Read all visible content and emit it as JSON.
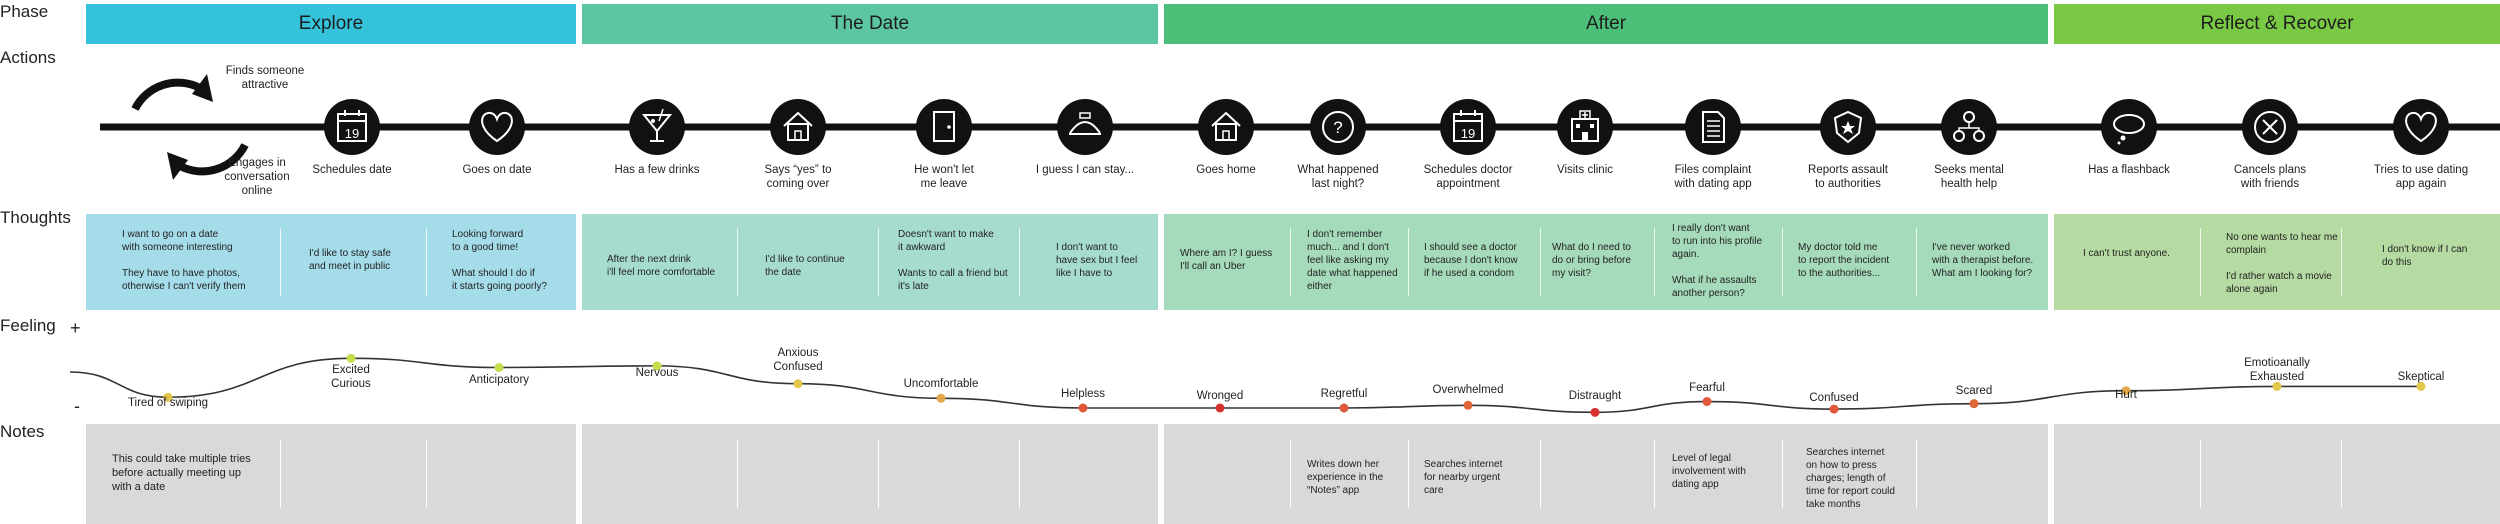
{
  "row_labels": {
    "phase": "Phase",
    "actions": "Actions",
    "thoughts": "Thoughts",
    "feeling": "Feeling",
    "notes": "Notes",
    "plus": "+",
    "minus": "-"
  },
  "phases": [
    {
      "label": "Explore",
      "color": "#35c3dc"
    },
    {
      "label": "The Date",
      "color": "#5cc6a4"
    },
    {
      "label": "After",
      "color": "#4bbf78"
    },
    {
      "label": "Reflect & Recover",
      "color": "#7ac944"
    }
  ],
  "thought_colors": [
    "#a5dcea",
    "#a6dccf",
    "#a5dabb",
    "#b5dba2"
  ],
  "actions": [
    {
      "icon": "cycle-icon",
      "label": "Finds someone\nattractive"
    },
    {
      "icon": "cycle-icon",
      "label": "Engages in\nconversation\nonline"
    },
    {
      "icon": "calendar-icon",
      "label": "Schedules date"
    },
    {
      "icon": "heart-icon",
      "label": "Goes on date"
    },
    {
      "icon": "cocktail-icon",
      "label": "Has a few drinks"
    },
    {
      "icon": "house-icon",
      "label": "Says “yes” to\ncoming over"
    },
    {
      "icon": "door-icon",
      "label": "He won't let\nme leave"
    },
    {
      "icon": "bed-icon",
      "label": "I guess I can stay..."
    },
    {
      "icon": "house-icon",
      "label": "Goes home"
    },
    {
      "icon": "question-icon",
      "label": "What happened\nlast night?"
    },
    {
      "icon": "calendar-icon",
      "label": "Schedules doctor\nappointment"
    },
    {
      "icon": "clinic-icon",
      "label": "Visits clinic"
    },
    {
      "icon": "document-icon",
      "label": "Files complaint\nwith dating app"
    },
    {
      "icon": "badge-icon",
      "label": "Reports assault\nto authorities"
    },
    {
      "icon": "network-icon",
      "label": "Seeks mental\nhealth help"
    },
    {
      "icon": "thought-cloud-icon",
      "label": "Has a flashback"
    },
    {
      "icon": "cancel-icon",
      "label": "Cancels plans\nwith friends"
    },
    {
      "icon": "heart-icon",
      "label": "Tries to use dating\napp again"
    }
  ],
  "calendar_day": "19",
  "thoughts": [
    "I want to go on a date\nwith someone interesting\n\nThey have to have photos,\notherwise I can't verify them",
    "I'd like to stay safe\nand meet in public",
    "Looking forward\nto a good time!\n\nWhat should I do if\nit starts going poorly?",
    "After the next drink\ni'll feel more comfortable",
    "I'd like to continue\nthe date",
    "Doesn't want to make\nit awkward\n\nWants to call a friend but\nit's late",
    "I don't want to\nhave sex but I feel\nlike I have to",
    "Where am I? I guess\nI'll call an Uber",
    "I don't remember\nmuch... and I don't\nfeel like asking my\ndate what happened\neither",
    "I should see a doctor\nbecause I don't know\nif he used a condom",
    "What do I need to\ndo or bring before\nmy visit?",
    "I really don't want\nto run into his profile\nagain.\n\nWhat if he assaults\nanother person?",
    "My doctor told me\nto report the incident\nto the authorities...",
    "I've never worked\nwith a therapist before.\nWhat am I looking for?",
    "I can't trust anyone.",
    "No one wants to hear me\ncomplain\n\nI'd rather watch a movie\nalone again",
    "I don't know if I can\ndo this"
  ],
  "feelings": [
    {
      "label": "Tired of swiping",
      "level": 0.2,
      "color": "#e3c64a"
    },
    {
      "label": "Excited\nCurious",
      "level": 0.92,
      "color": "#c9dc4a"
    },
    {
      "label": "Anticipatory",
      "level": 0.75,
      "color": "#c9dc4a"
    },
    {
      "label": "Nervous",
      "level": 0.78,
      "color": "#c9dc4a"
    },
    {
      "label": "Anxious\nConfused",
      "level": 0.45,
      "color": "#e3c64a"
    },
    {
      "label": "Uncomfortable",
      "level": 0.18,
      "color": "#e3a64a"
    },
    {
      "label": "Helpless",
      "level": 0.0,
      "color": "#e0573a"
    },
    {
      "label": "Wronged",
      "level": 0.0,
      "color": "#d93030"
    },
    {
      "label": "Regretful",
      "level": 0.0,
      "color": "#e0573a"
    },
    {
      "label": "Overwhelmed",
      "level": 0.05,
      "color": "#e0673a"
    },
    {
      "label": "Distraught",
      "level": -0.08,
      "color": "#d93030"
    },
    {
      "label": "Fearful",
      "level": 0.12,
      "color": "#e0573a"
    },
    {
      "label": "Confused",
      "level": -0.02,
      "color": "#e0573a"
    },
    {
      "label": "Scared",
      "level": 0.08,
      "color": "#e0673a"
    },
    {
      "label": "Hurt",
      "level": 0.32,
      "color": "#e3a64a"
    },
    {
      "label": "Emotioanally\nExhausted",
      "level": 0.4,
      "color": "#e3c64a"
    },
    {
      "label": "Skeptical",
      "level": 0.4,
      "color": "#e3c64a"
    }
  ],
  "notes": [
    "This could take multiple tries\nbefore actually meeting up\nwith a date",
    "Writes down her\nexperience in the\n“Notes” app",
    "Searches internet\nfor nearby urgent\ncare",
    "Level of legal\ninvolvement with\ndating app",
    "Searches internet\non how to press\ncharges; length of\ntime for report could\ntake months"
  ]
}
